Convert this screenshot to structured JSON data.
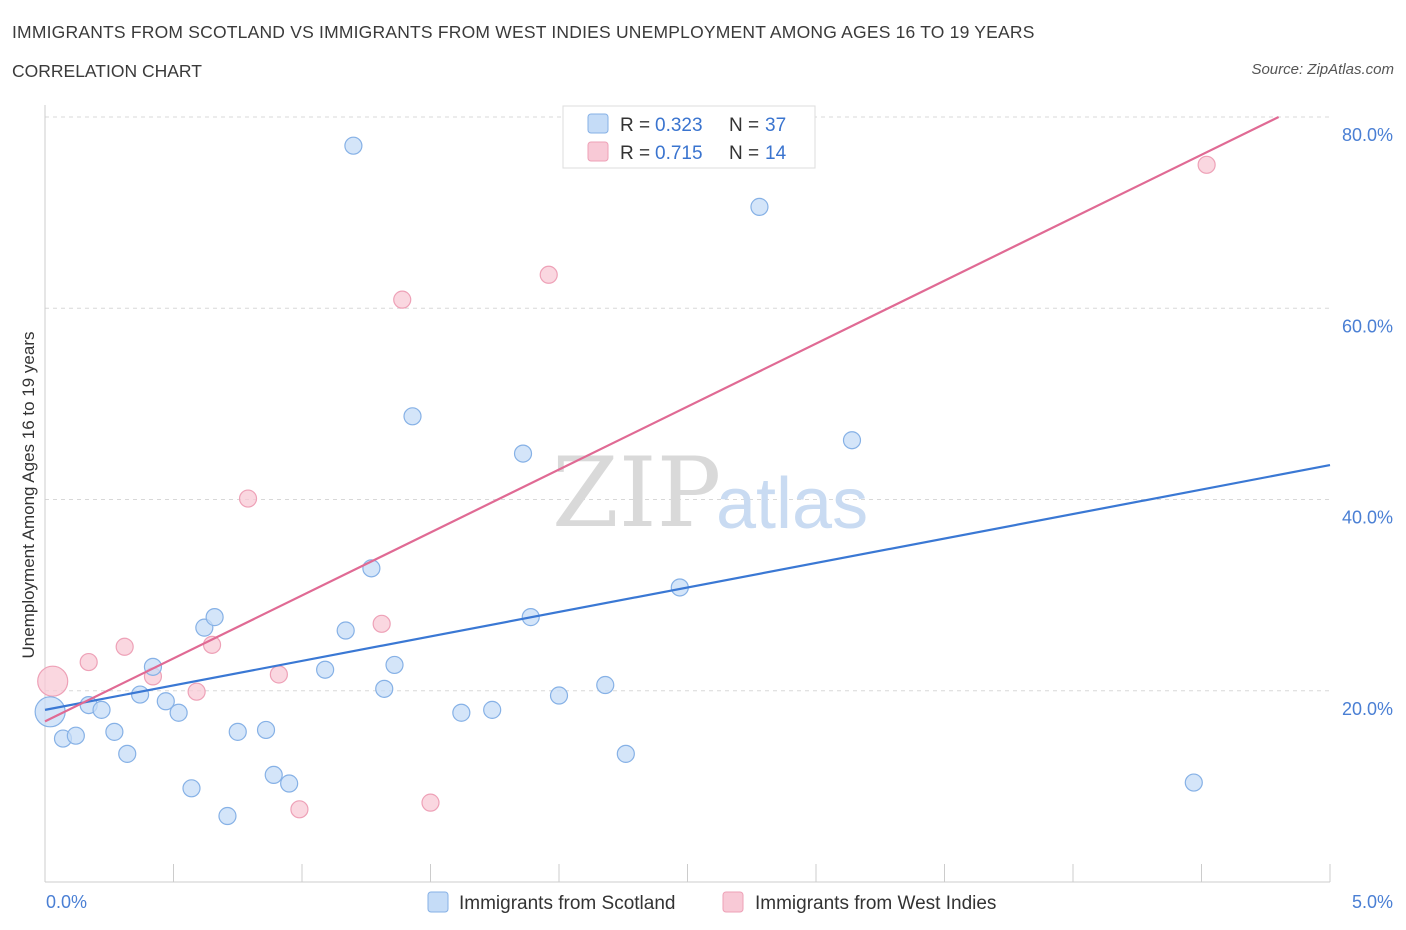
{
  "header": {
    "title": "IMMIGRANTS FROM SCOTLAND VS IMMIGRANTS FROM WEST INDIES UNEMPLOYMENT AMONG AGES 16 TO 19 YEARS",
    "subtitle": "CORRELATION CHART",
    "source": "Source: ZipAtlas.com"
  },
  "watermark": {
    "zip": "ZIP",
    "atlas": "atlas"
  },
  "legend": {
    "r_label": "R =",
    "n_label": "N =",
    "rows": [
      {
        "r": "0.323",
        "n": "37"
      },
      {
        "r": "0.715",
        "n": "14"
      }
    ]
  },
  "colors": {
    "scotland_fill": "#c5dcf7",
    "scotland_stroke": "#86b1e6",
    "scotland_line": "#3a78d4",
    "westindies_fill": "#f8c9d6",
    "westindies_stroke": "#eea1b7",
    "westindies_line": "#e06a94",
    "tick_text": "#4a7fd4"
  },
  "chart_data": {
    "type": "scatter",
    "xlabel": "",
    "ylabel": "Unemployment Among Ages 16 to 19 years",
    "xlim": [
      0,
      5
    ],
    "ylim": [
      0,
      80
    ],
    "x_tick_labels": [
      "0.0%",
      "5.0%"
    ],
    "y_ticks": [
      20,
      40,
      60,
      80
    ],
    "y_tick_labels": [
      "20.0%",
      "40.0%",
      "60.0%",
      "80.0%"
    ],
    "grid": true,
    "legend_position": "top-center",
    "series": [
      {
        "name": "Immigrants from Scotland",
        "r": 0.323,
        "n": 37,
        "trend": {
          "x": [
            0,
            5
          ],
          "y": [
            18.0,
            43.6
          ]
        },
        "points": [
          {
            "x": 0.02,
            "y": 17.8,
            "big": true
          },
          {
            "x": 0.07,
            "y": 15.0
          },
          {
            "x": 0.12,
            "y": 15.3
          },
          {
            "x": 0.17,
            "y": 18.5
          },
          {
            "x": 0.22,
            "y": 18.0
          },
          {
            "x": 0.27,
            "y": 15.7
          },
          {
            "x": 0.32,
            "y": 13.4
          },
          {
            "x": 0.37,
            "y": 19.6
          },
          {
            "x": 0.42,
            "y": 22.5
          },
          {
            "x": 0.47,
            "y": 18.9
          },
          {
            "x": 0.52,
            "y": 17.7
          },
          {
            "x": 0.57,
            "y": 9.8
          },
          {
            "x": 0.62,
            "y": 26.6
          },
          {
            "x": 0.66,
            "y": 27.7
          },
          {
            "x": 0.71,
            "y": 6.9
          },
          {
            "x": 0.75,
            "y": 15.7
          },
          {
            "x": 0.86,
            "y": 15.9
          },
          {
            "x": 0.89,
            "y": 11.2
          },
          {
            "x": 0.95,
            "y": 10.3
          },
          {
            "x": 1.09,
            "y": 22.2
          },
          {
            "x": 1.17,
            "y": 26.3
          },
          {
            "x": 1.2,
            "y": 77.0
          },
          {
            "x": 1.27,
            "y": 32.8
          },
          {
            "x": 1.32,
            "y": 20.2
          },
          {
            "x": 1.36,
            "y": 22.7
          },
          {
            "x": 1.43,
            "y": 48.7
          },
          {
            "x": 1.62,
            "y": 17.7
          },
          {
            "x": 1.74,
            "y": 18.0
          },
          {
            "x": 1.86,
            "y": 44.8
          },
          {
            "x": 1.89,
            "y": 27.7
          },
          {
            "x": 2.0,
            "y": 19.5
          },
          {
            "x": 2.18,
            "y": 20.6
          },
          {
            "x": 2.26,
            "y": 13.4
          },
          {
            "x": 2.47,
            "y": 30.8
          },
          {
            "x": 2.78,
            "y": 70.6
          },
          {
            "x": 3.14,
            "y": 46.2
          },
          {
            "x": 4.47,
            "y": 10.4
          }
        ]
      },
      {
        "name": "Immigrants from West Indies",
        "r": 0.715,
        "n": 14,
        "trend": {
          "x": [
            0,
            4.8
          ],
          "y": [
            16.8,
            80.0
          ]
        },
        "points": [
          {
            "x": 0.03,
            "y": 21.0,
            "big": true
          },
          {
            "x": 0.17,
            "y": 23.0
          },
          {
            "x": 0.31,
            "y": 24.6
          },
          {
            "x": 0.42,
            "y": 21.5
          },
          {
            "x": 0.59,
            "y": 19.9
          },
          {
            "x": 0.65,
            "y": 24.8
          },
          {
            "x": 0.79,
            "y": 40.1
          },
          {
            "x": 0.91,
            "y": 21.7
          },
          {
            "x": 0.99,
            "y": 7.6
          },
          {
            "x": 1.31,
            "y": 27.0
          },
          {
            "x": 1.39,
            "y": 60.9
          },
          {
            "x": 1.5,
            "y": 8.3
          },
          {
            "x": 1.96,
            "y": 63.5
          },
          {
            "x": 4.52,
            "y": 75.0
          }
        ]
      }
    ]
  }
}
